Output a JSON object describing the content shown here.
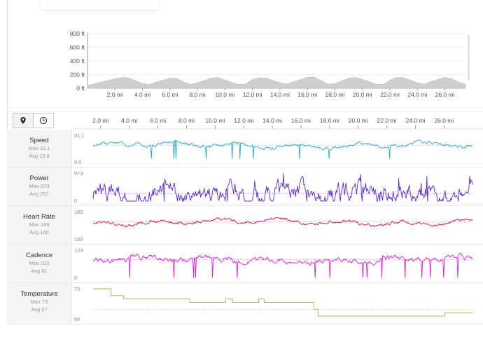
{
  "elevation": {
    "y_ticks": [
      "800 ft",
      "600 ft",
      "400 ft",
      "200 ft",
      "0 ft"
    ],
    "x_ticks": [
      "2.0 mi",
      "4.0 mi",
      "6.0 mi",
      "8.0 mi",
      "10.0 mi",
      "12.0 mi",
      "14.0 mi",
      "16.0 mi",
      "18.0 mi",
      "20.0 mi",
      "22.0 mi",
      "24.0 mi",
      "26.0 mi"
    ]
  },
  "view_tabs": [
    {
      "icon": "map-pin-icon",
      "active": true
    },
    {
      "icon": "clock-icon",
      "active": false
    }
  ],
  "x_ticks": [
    "2.0 mi",
    "4.0 mi",
    "6.0 mi",
    "8.0 mi",
    "10.0 mi",
    "12.0 mi",
    "14.0 mi",
    "16.0 mi",
    "18.0 mi",
    "20.0 mi",
    "22.0 mi",
    "24.0 mi",
    "26.0 mi"
  ],
  "metrics": [
    {
      "name": "Speed",
      "max": "Max 31.1",
      "avg": "Avg 19.8",
      "y_top": "31.1",
      "y_bottom": "0.0",
      "color": "#2ea3d6"
    },
    {
      "name": "Power",
      "max": "Max 973",
      "avg": "Avg 257",
      "y_top": "973",
      "y_bottom": "0",
      "color": "#5a2bd6"
    },
    {
      "name": "Heart Rate",
      "max": "Max 189",
      "avg": "Avg 160",
      "y_top": "189",
      "y_bottom": "109",
      "color": "#d11250"
    },
    {
      "name": "Cadence",
      "max": "Max 123",
      "avg": "Avg 81",
      "y_top": "123",
      "y_bottom": "0",
      "color": "#e021e0"
    },
    {
      "name": "Temperature",
      "max": "Max 73",
      "avg": "Avg 67",
      "y_top": "73",
      "y_bottom": "64",
      "color": "#c0a24a"
    }
  ],
  "chart_data": [
    {
      "type": "area",
      "title": "",
      "xlabel": "",
      "ylabel": "",
      "ylim": [
        0,
        800
      ],
      "xlim": [
        0,
        27.5
      ],
      "x": [
        0,
        1,
        2,
        2.6,
        3,
        4,
        4.5,
        5,
        6,
        6.5,
        7,
        7.5,
        8,
        9,
        9.5,
        10,
        11,
        11.5,
        12,
        12.5,
        13,
        14,
        14.5,
        15,
        16,
        16.5,
        17,
        17.5,
        18,
        19,
        19.5,
        20,
        21,
        21.5,
        22,
        22.5,
        23,
        24,
        24.5,
        25,
        26,
        26.5,
        27,
        27.5
      ],
      "series": [
        {
          "values": [
            40,
            90,
            140,
            160,
            150,
            70,
            55,
            90,
            150,
            145,
            90,
            60,
            80,
            150,
            160,
            120,
            55,
            60,
            130,
            155,
            150,
            80,
            60,
            95,
            160,
            165,
            110,
            60,
            70,
            150,
            160,
            130,
            60,
            55,
            120,
            160,
            155,
            80,
            60,
            100,
            160,
            140,
            90,
            60
          ]
        }
      ]
    },
    {
      "type": "line",
      "title": "",
      "xlabel": "",
      "ylabel": "",
      "xlim": [
        0,
        27.5
      ],
      "series": [
        {
          "name": "Speed",
          "ylim": [
            0,
            31.1
          ],
          "avg": 19.8
        },
        {
          "name": "Power",
          "ylim": [
            0,
            973
          ],
          "avg": 257
        },
        {
          "name": "Heart Rate",
          "ylim": [
            109,
            189
          ],
          "avg": 160
        },
        {
          "name": "Cadence",
          "ylim": [
            0,
            123
          ],
          "avg": 81
        },
        {
          "name": "Temperature",
          "ylim": [
            64,
            73
          ],
          "avg": 67,
          "steps": [
            [
              0,
              73
            ],
            [
              1.3,
              73
            ],
            [
              1.3,
              71
            ],
            [
              2.2,
              71
            ],
            [
              2.2,
              70
            ],
            [
              7.0,
              70
            ],
            [
              7.0,
              69
            ],
            [
              9.6,
              69
            ],
            [
              9.6,
              70
            ],
            [
              10.1,
              70
            ],
            [
              10.1,
              69
            ],
            [
              12.0,
              69
            ],
            [
              12.0,
              70
            ],
            [
              12.4,
              70
            ],
            [
              12.4,
              69
            ],
            [
              16.0,
              69
            ],
            [
              16.0,
              67
            ],
            [
              16.3,
              67
            ],
            [
              16.3,
              65
            ],
            [
              25.5,
              65
            ],
            [
              25.5,
              66
            ],
            [
              27.5,
              66
            ]
          ]
        }
      ]
    }
  ]
}
